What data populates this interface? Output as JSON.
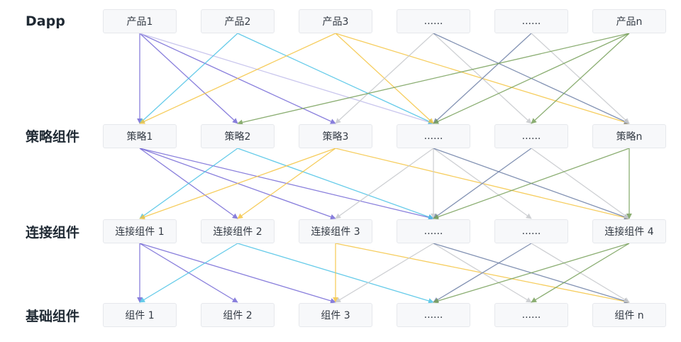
{
  "rows": [
    {
      "label": "Dapp",
      "nodes": [
        "产品1",
        "产品2",
        "产品3",
        "......",
        "......",
        "产品n"
      ]
    },
    {
      "label": "策略组件",
      "nodes": [
        "策略1",
        "策略2",
        "策略3",
        "......",
        "......",
        "策略n"
      ]
    },
    {
      "label": "连接组件",
      "nodes": [
        "连接组件 1",
        "连接组件 2",
        "连接组件 3",
        "......",
        "......",
        "连接组件 4"
      ]
    },
    {
      "label": "基础组件",
      "nodes": [
        "组件 1",
        "组件 2",
        "组件 3",
        "......",
        "......",
        "组件 n"
      ]
    }
  ],
  "colors": {
    "purple": "#7468d6",
    "lavender": "#c4c0ec",
    "cyan": "#4cc3e6",
    "yellow": "#f5c542",
    "gray": "#c9cbcf",
    "green": "#77a05a",
    "slate": "#6d7fa6"
  },
  "edges": [
    {
      "from": [
        0,
        0
      ],
      "to": [
        1,
        0
      ],
      "color": "purple"
    },
    {
      "from": [
        0,
        0
      ],
      "to": [
        1,
        1
      ],
      "color": "purple"
    },
    {
      "from": [
        0,
        0
      ],
      "to": [
        1,
        2
      ],
      "color": "purple"
    },
    {
      "from": [
        0,
        0
      ],
      "to": [
        1,
        3
      ],
      "color": "lavender"
    },
    {
      "from": [
        0,
        1
      ],
      "to": [
        1,
        0
      ],
      "color": "cyan"
    },
    {
      "from": [
        0,
        1
      ],
      "to": [
        1,
        3
      ],
      "color": "cyan"
    },
    {
      "from": [
        0,
        2
      ],
      "to": [
        1,
        0
      ],
      "color": "yellow"
    },
    {
      "from": [
        0,
        2
      ],
      "to": [
        1,
        3
      ],
      "color": "yellow"
    },
    {
      "from": [
        0,
        2
      ],
      "to": [
        1,
        5
      ],
      "color": "yellow"
    },
    {
      "from": [
        0,
        3
      ],
      "to": [
        1,
        2
      ],
      "color": "gray"
    },
    {
      "from": [
        0,
        3
      ],
      "to": [
        1,
        4
      ],
      "color": "gray"
    },
    {
      "from": [
        0,
        3
      ],
      "to": [
        1,
        5
      ],
      "color": "slate"
    },
    {
      "from": [
        0,
        4
      ],
      "to": [
        1,
        3
      ],
      "color": "slate"
    },
    {
      "from": [
        0,
        4
      ],
      "to": [
        1,
        5
      ],
      "color": "gray"
    },
    {
      "from": [
        0,
        5
      ],
      "to": [
        1,
        1
      ],
      "color": "green"
    },
    {
      "from": [
        0,
        5
      ],
      "to": [
        1,
        3
      ],
      "color": "green"
    },
    {
      "from": [
        0,
        5
      ],
      "to": [
        1,
        4
      ],
      "color": "green"
    },
    {
      "from": [
        1,
        0
      ],
      "to": [
        2,
        1
      ],
      "color": "purple"
    },
    {
      "from": [
        1,
        0
      ],
      "to": [
        2,
        2
      ],
      "color": "purple"
    },
    {
      "from": [
        1,
        0
      ],
      "to": [
        2,
        3
      ],
      "color": "purple"
    },
    {
      "from": [
        1,
        1
      ],
      "to": [
        2,
        0
      ],
      "color": "cyan"
    },
    {
      "from": [
        1,
        1
      ],
      "to": [
        2,
        3
      ],
      "color": "cyan"
    },
    {
      "from": [
        1,
        2
      ],
      "to": [
        2,
        0
      ],
      "color": "yellow"
    },
    {
      "from": [
        1,
        2
      ],
      "to": [
        2,
        1
      ],
      "color": "yellow"
    },
    {
      "from": [
        1,
        2
      ],
      "to": [
        2,
        5
      ],
      "color": "yellow"
    },
    {
      "from": [
        1,
        3
      ],
      "to": [
        2,
        2
      ],
      "color": "gray"
    },
    {
      "from": [
        1,
        3
      ],
      "to": [
        2,
        3
      ],
      "color": "gray"
    },
    {
      "from": [
        1,
        3
      ],
      "to": [
        2,
        4
      ],
      "color": "gray"
    },
    {
      "from": [
        1,
        3
      ],
      "to": [
        2,
        5
      ],
      "color": "slate"
    },
    {
      "from": [
        1,
        4
      ],
      "to": [
        2,
        3
      ],
      "color": "slate"
    },
    {
      "from": [
        1,
        4
      ],
      "to": [
        2,
        5
      ],
      "color": "gray"
    },
    {
      "from": [
        1,
        5
      ],
      "to": [
        2,
        3
      ],
      "color": "green"
    },
    {
      "from": [
        1,
        5
      ],
      "to": [
        2,
        5
      ],
      "color": "green"
    },
    {
      "from": [
        2,
        0
      ],
      "to": [
        3,
        0
      ],
      "color": "purple"
    },
    {
      "from": [
        2,
        0
      ],
      "to": [
        3,
        1
      ],
      "color": "purple"
    },
    {
      "from": [
        2,
        0
      ],
      "to": [
        3,
        2
      ],
      "color": "purple"
    },
    {
      "from": [
        2,
        1
      ],
      "to": [
        3,
        0
      ],
      "color": "cyan"
    },
    {
      "from": [
        2,
        1
      ],
      "to": [
        3,
        3
      ],
      "color": "cyan"
    },
    {
      "from": [
        2,
        2
      ],
      "to": [
        3,
        2
      ],
      "color": "yellow"
    },
    {
      "from": [
        2,
        2
      ],
      "to": [
        3,
        5
      ],
      "color": "yellow"
    },
    {
      "from": [
        2,
        3
      ],
      "to": [
        3,
        2
      ],
      "color": "gray"
    },
    {
      "from": [
        2,
        3
      ],
      "to": [
        3,
        4
      ],
      "color": "gray"
    },
    {
      "from": [
        2,
        3
      ],
      "to": [
        3,
        5
      ],
      "color": "slate"
    },
    {
      "from": [
        2,
        4
      ],
      "to": [
        3,
        3
      ],
      "color": "slate"
    },
    {
      "from": [
        2,
        4
      ],
      "to": [
        3,
        5
      ],
      "color": "gray"
    },
    {
      "from": [
        2,
        5
      ],
      "to": [
        3,
        3
      ],
      "color": "green"
    },
    {
      "from": [
        2,
        5
      ],
      "to": [
        3,
        4
      ],
      "color": "green"
    }
  ]
}
